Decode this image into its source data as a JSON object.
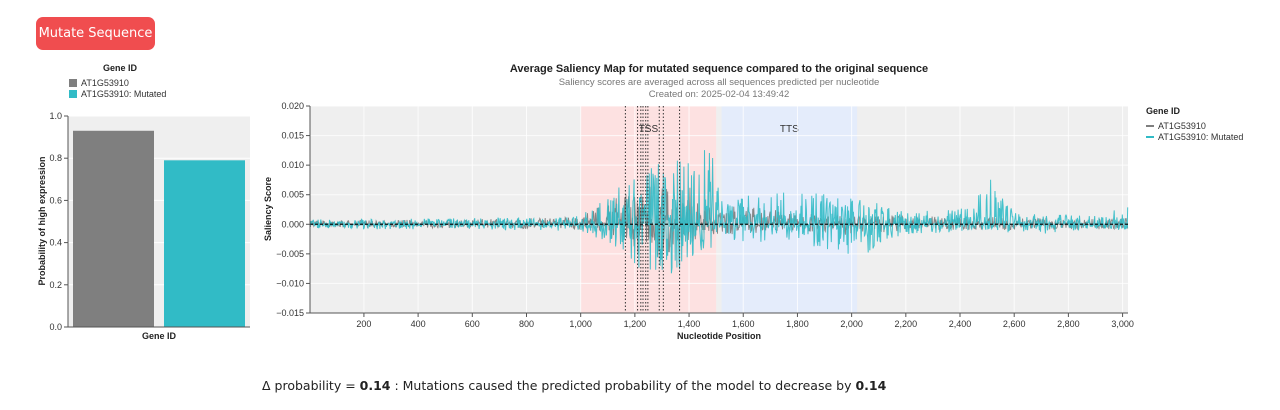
{
  "button": {
    "label": "Mutate Sequence"
  },
  "colors": {
    "original": "#7f7f7f",
    "mutated": "#31bbc6",
    "button": "#f04d4f",
    "tss_region": "#fde1e1",
    "tts_region": "#e4ecfb",
    "plot_bg": "#efefef"
  },
  "chart_data": [
    {
      "type": "bar",
      "legend": {
        "title": "Gene ID",
        "items": [
          "AT1G53910",
          "AT1G53910: Mutated"
        ],
        "placement": "top"
      },
      "categories": [
        "AT1G53910",
        "AT1G53910: Mutated"
      ],
      "values": [
        0.93,
        0.79
      ],
      "xlabel": "Gene ID",
      "ylabel": "Probability of high expression",
      "ylim": [
        0,
        1
      ],
      "yticks": [
        "0.0",
        "0.2",
        "0.4",
        "0.6",
        "0.8",
        "1.0"
      ],
      "grid": true
    },
    {
      "type": "line",
      "title": "Average Saliency Map for mutated sequence compared to the original sequence",
      "subtitle": "Saliency scores are averaged across all sequences predicted per nucleotide",
      "created": "Created on: 2025-02-04 13:49:42",
      "xlabel": "Nucleotide Position",
      "ylabel": "Saliency Score",
      "xlim": [
        1,
        3020
      ],
      "ylim": [
        -0.015,
        0.02
      ],
      "xticks": [
        "200",
        "400",
        "600",
        "800",
        "1,000",
        "1,200",
        "1,400",
        "1,600",
        "1,800",
        "2,000",
        "2,200",
        "2,400",
        "2,600",
        "2,800",
        "3,000"
      ],
      "yticks": [
        "0.020",
        "0.015",
        "0.010",
        "0.005",
        "0.000",
        "−0.005",
        "−0.010",
        "−0.015"
      ],
      "legend": {
        "title": "Gene ID",
        "items": [
          "AT1G53910",
          "AT1G53910: Mutated"
        ],
        "placement": "right"
      },
      "series": [
        {
          "name": "AT1G53910",
          "envelope": [
            [
              1,
              0.0006,
              -0.0005
            ],
            [
              400,
              0.0008,
              -0.0006
            ],
            [
              800,
              0.001,
              -0.0008
            ],
            [
              1000,
              0.0012,
              -0.001
            ],
            [
              1100,
              0.004,
              -0.002
            ],
            [
              1200,
              0.006,
              -0.005
            ],
            [
              1300,
              0.007,
              -0.006
            ],
            [
              1400,
              0.008,
              -0.004
            ],
            [
              1500,
              0.003,
              -0.002
            ],
            [
              1600,
              0.003,
              -0.002
            ],
            [
              1800,
              0.002,
              -0.001
            ],
            [
              2000,
              0.0015,
              -0.002
            ],
            [
              2200,
              0.0015,
              -0.001
            ],
            [
              2500,
              0.0012,
              -0.001
            ],
            [
              3020,
              0.001,
              -0.0008
            ]
          ]
        },
        {
          "name": "AT1G53910: Mutated",
          "envelope": [
            [
              1,
              0.0008,
              -0.0008
            ],
            [
              400,
              0.001,
              -0.0009
            ],
            [
              800,
              0.0012,
              -0.001
            ],
            [
              1000,
              0.0015,
              -0.0012
            ],
            [
              1100,
              0.005,
              -0.003
            ],
            [
              1200,
              0.009,
              -0.008
            ],
            [
              1300,
              0.011,
              -0.011
            ],
            [
              1400,
              0.012,
              -0.006
            ],
            [
              1480,
              0.013,
              -0.004
            ],
            [
              1520,
              0.004,
              -0.003
            ],
            [
              1600,
              0.005,
              -0.003
            ],
            [
              1800,
              0.006,
              -0.003
            ],
            [
              2000,
              0.005,
              -0.006
            ],
            [
              2200,
              0.002,
              -0.002
            ],
            [
              2450,
              0.003,
              -0.001
            ],
            [
              2500,
              0.009,
              -0.001
            ],
            [
              2600,
              0.002,
              -0.002
            ],
            [
              2900,
              0.0015,
              -0.001
            ],
            [
              3020,
              0.003,
              -0.001
            ]
          ]
        }
      ],
      "regions": [
        {
          "label": "TSS",
          "start": 1000,
          "end": 1500
        },
        {
          "label": "TTS",
          "start": 1520,
          "end": 2020
        }
      ],
      "mutation_positions": [
        1165,
        1210,
        1222,
        1230,
        1240,
        1248,
        1290,
        1305,
        1365
      ]
    }
  ],
  "footer": {
    "prefix": "Δ probability = ",
    "value": "0.14",
    "middle": " : Mutations caused the predicted probability of the model to decrease by ",
    "value2": "0.14"
  }
}
